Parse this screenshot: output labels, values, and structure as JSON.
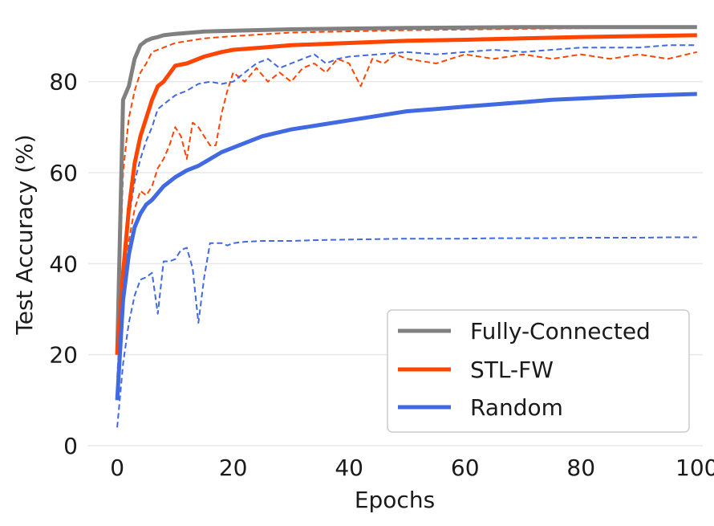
{
  "chart_data": {
    "type": "line",
    "title": "",
    "xlabel": "Epochs",
    "ylabel": "Test Accuracy (%)",
    "xlim": [
      -5,
      101
    ],
    "ylim": [
      0,
      93
    ],
    "xticks": [
      0,
      20,
      40,
      60,
      80,
      100
    ],
    "yticks": [
      0,
      20,
      40,
      60,
      80
    ],
    "x_tick_labels": [
      "0",
      "20",
      "40",
      "60",
      "80",
      "100"
    ],
    "y_tick_labels": [
      "0",
      "20",
      "40",
      "60",
      "80"
    ],
    "grid": "horizontal",
    "legend_position": "bottom-right",
    "legend": [
      {
        "label": "Fully-Connected",
        "color": "#808080"
      },
      {
        "label": "STL-FW",
        "color": "#ff4500"
      },
      {
        "label": "Random",
        "color": "#4169e1"
      }
    ],
    "series": [
      {
        "name": "Fully-Connected",
        "color": "#808080",
        "style": "solid",
        "x": [
          0,
          1,
          2,
          3,
          4,
          5,
          6,
          7,
          8,
          10,
          15,
          20,
          30,
          50,
          70,
          100
        ],
        "y": [
          20,
          76,
          79,
          85,
          88,
          89,
          89.5,
          89.8,
          90.2,
          90.5,
          91,
          91.2,
          91.5,
          91.8,
          92,
          92
        ]
      },
      {
        "name": "STL-FW",
        "color": "#ff4500",
        "style": "solid",
        "x": [
          0,
          1,
          2,
          3,
          4,
          5,
          6,
          7,
          8,
          10,
          12,
          15,
          18,
          20,
          25,
          30,
          40,
          50,
          60,
          70,
          80,
          100
        ],
        "y": [
          20,
          38,
          52,
          62,
          68,
          72,
          76,
          79,
          80,
          83.5,
          84,
          85.5,
          86.5,
          87,
          87.5,
          88,
          88.5,
          89,
          89.2,
          89.5,
          89.8,
          90.2
        ]
      },
      {
        "name": "STL-FW (upper)",
        "color": "#ff4500",
        "style": "dashed",
        "x": [
          0,
          1,
          2,
          3,
          4,
          5,
          6,
          8,
          10,
          15,
          20,
          30,
          50,
          70,
          100
        ],
        "y": [
          20,
          60,
          72,
          78,
          82,
          84,
          86.5,
          87.5,
          88.5,
          89.5,
          90,
          90.8,
          91.3,
          91.6,
          92
        ]
      },
      {
        "name": "STL-FW (lower)",
        "color": "#ff4500",
        "style": "dashed",
        "x": [
          0,
          1,
          2,
          3,
          4,
          5,
          6,
          7,
          8,
          9,
          10,
          11,
          12,
          13,
          14,
          15,
          16,
          17,
          18,
          19,
          20,
          22,
          24,
          26,
          28,
          30,
          32,
          34,
          36,
          38,
          40,
          42,
          44,
          46,
          48,
          50,
          55,
          60,
          65,
          70,
          75,
          80,
          85,
          90,
          95,
          100
        ],
        "y": [
          10,
          32,
          45,
          52,
          56,
          55,
          57,
          61,
          63,
          66,
          70,
          68,
          63,
          71,
          70,
          68,
          66,
          66,
          73,
          78,
          82,
          80,
          83,
          80,
          82,
          80,
          83,
          84,
          82,
          85,
          84,
          79,
          85,
          84,
          86,
          85,
          84,
          86,
          85,
          86,
          85,
          86,
          85,
          86,
          85,
          86.5
        ]
      },
      {
        "name": "Random",
        "color": "#4169e1",
        "style": "solid",
        "x": [
          0,
          1,
          2,
          3,
          4,
          5,
          6,
          7,
          8,
          10,
          12,
          14,
          16,
          18,
          20,
          25,
          30,
          35,
          40,
          45,
          50,
          55,
          60,
          65,
          70,
          75,
          80,
          85,
          90,
          95,
          100
        ],
        "y": [
          10,
          32,
          42,
          48,
          51,
          53,
          54,
          55.5,
          57,
          59,
          60.5,
          61.5,
          63,
          64.5,
          65.5,
          68,
          69.5,
          70.5,
          71.5,
          72.5,
          73.5,
          74,
          74.5,
          75,
          75.5,
          76,
          76.3,
          76.6,
          76.9,
          77.1,
          77.3
        ]
      },
      {
        "name": "Random (upper)",
        "color": "#4169e1",
        "style": "dashed",
        "x": [
          0,
          1,
          2,
          3,
          4,
          5,
          6,
          7,
          8,
          10,
          12,
          14,
          16,
          18,
          20,
          22,
          24,
          26,
          28,
          30,
          32,
          34,
          36,
          38,
          40,
          45,
          50,
          55,
          60,
          65,
          70,
          75,
          80,
          85,
          90,
          95,
          100
        ],
        "y": [
          15,
          38,
          50,
          58,
          63,
          67,
          70,
          74,
          75,
          77,
          78,
          79.5,
          80,
          79.5,
          80,
          82,
          84,
          85,
          83,
          84,
          85,
          86,
          84,
          85,
          85.5,
          86,
          86.5,
          86,
          86.5,
          87,
          86.5,
          87,
          87.5,
          87.5,
          87.5,
          88,
          88
        ]
      },
      {
        "name": "Random (lower)",
        "color": "#4169e1",
        "style": "dashed",
        "x": [
          0,
          1,
          2,
          3,
          4,
          5,
          6,
          7,
          8,
          9,
          10,
          11,
          12,
          13,
          14,
          15,
          16,
          17,
          18,
          19,
          20,
          22,
          25,
          30,
          35,
          40,
          45,
          50,
          55,
          60,
          65,
          70,
          75,
          80,
          85,
          90,
          95,
          100
        ],
        "y": [
          4,
          18,
          27,
          33,
          36.5,
          37,
          38,
          29,
          40.5,
          40.5,
          41,
          43,
          43.5,
          39,
          27,
          37,
          44.5,
          44.5,
          44.5,
          44,
          44.5,
          44.8,
          45,
          45,
          45.2,
          45.3,
          45.4,
          45.5,
          45.5,
          45.5,
          45.6,
          45.6,
          45.6,
          45.7,
          45.7,
          45.7,
          45.8,
          45.8
        ]
      }
    ]
  }
}
